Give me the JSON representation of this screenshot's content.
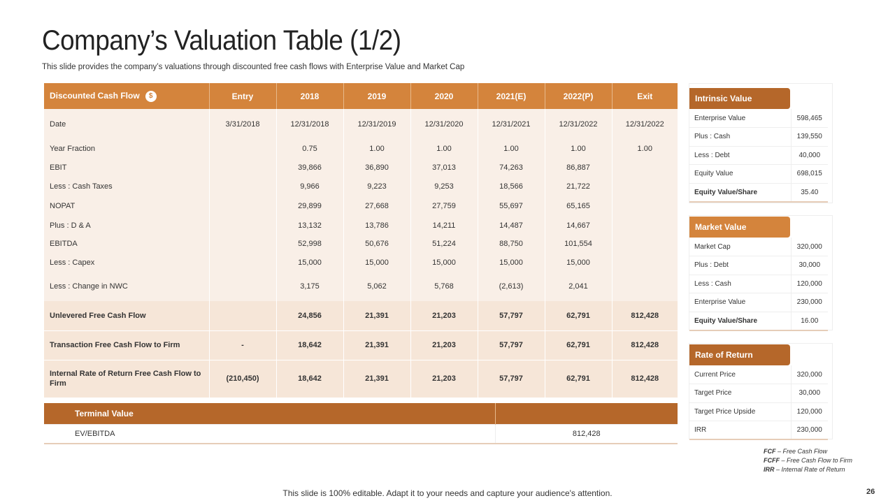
{
  "title": "Company’s Valuation Table (1/2)",
  "subtitle": "This slide provides the company’s valuations through discounted free cash flows with Enterprise Value and Market Cap",
  "dcf": {
    "header": [
      "Discounted Cash Flow",
      "Entry",
      "2018",
      "2019",
      "2020",
      "2021(E)",
      "2022(P)",
      "Exit"
    ],
    "coin_icon": "$",
    "rows": [
      {
        "label": "Date",
        "values": [
          "3/31/2018",
          "12/31/2018",
          "12/31/2019",
          "12/31/2020",
          "12/31/2021",
          "12/31/2022",
          "12/31/2022"
        ]
      },
      {
        "label": "Year Fraction",
        "values": [
          "",
          "0.75",
          "1.00",
          "1.00",
          "1.00",
          "1.00",
          "1.00"
        ]
      },
      {
        "label": "EBIT",
        "values": [
          "",
          "39,866",
          "36,890",
          "37,013",
          "74,263",
          "86,887",
          ""
        ]
      },
      {
        "label": "Less : Cash Taxes",
        "values": [
          "",
          "9,966",
          "9,223",
          "9,253",
          "18,566",
          "21,722",
          ""
        ]
      },
      {
        "label": "NOPAT",
        "values": [
          "",
          "29,899",
          "27,668",
          "27,759",
          "55,697",
          "65,165",
          ""
        ]
      },
      {
        "label": "Plus : D & A",
        "values": [
          "",
          "13,132",
          "13,786",
          "14,211",
          "14,487",
          "14,667",
          ""
        ]
      },
      {
        "label": "EBITDA",
        "values": [
          "",
          "52,998",
          "50,676",
          "51,224",
          "88,750",
          "101,554",
          ""
        ]
      },
      {
        "label": "Less : Capex",
        "values": [
          "",
          "15,000",
          "15,000",
          "15,000",
          "15,000",
          "15,000",
          ""
        ]
      },
      {
        "label": "Less : Change in NWC",
        "values": [
          "",
          "3,175",
          "5,062",
          "5,768",
          "(2,613)",
          "2,041",
          ""
        ]
      }
    ],
    "bold_rows": [
      {
        "label": "Unlevered Free Cash Flow",
        "values": [
          "",
          "24,856",
          "21,391",
          "21,203",
          "57,797",
          "62,791",
          "812,428"
        ]
      },
      {
        "label": "Transaction Free Cash Flow to Firm",
        "values": [
          "-",
          "18,642",
          "21,391",
          "21,203",
          "57,797",
          "62,791",
          "812,428"
        ]
      },
      {
        "label": "Internal Rate of Return Free Cash Flow to Firm",
        "values": [
          "(210,450)",
          "18,642",
          "21,391",
          "21,203",
          "57,797",
          "62,791",
          "812,428"
        ]
      }
    ]
  },
  "terminal": {
    "header": "Terminal Value",
    "label": "EV/EBITDA",
    "value": "812,428"
  },
  "panels": {
    "intrinsic": {
      "title": "Intrinsic Value",
      "color": "#b5672a",
      "rows": [
        {
          "label": "Enterprise Value",
          "value": "598,465"
        },
        {
          "label": "Plus : Cash",
          "value": "139,550"
        },
        {
          "label": "Less : Debt",
          "value": "40,000"
        },
        {
          "label": "Equity Value",
          "value": "698,015"
        },
        {
          "label": "Equity Value/Share",
          "value": "35.40"
        }
      ]
    },
    "market": {
      "title": "Market Value",
      "color": "#d4843c",
      "rows": [
        {
          "label": "Market Cap",
          "value": "320,000"
        },
        {
          "label": "Plus : Debt",
          "value": "30,000"
        },
        {
          "label": "Less : Cash",
          "value": "120,000"
        },
        {
          "label": "Enterprise Value",
          "value": "230,000"
        },
        {
          "label": "Equity Value/Share",
          "value": "16.00"
        }
      ]
    },
    "rate": {
      "title": "Rate of Return",
      "color": "#b5672a",
      "rows": [
        {
          "label": "Current Price",
          "value": "320,000"
        },
        {
          "label": "Target Price",
          "value": "30,000"
        },
        {
          "label": "Target Price Upside",
          "value": "120,000"
        },
        {
          "label": "IRR",
          "value": "230,000"
        }
      ]
    }
  },
  "legend": [
    {
      "abbr": "FCF",
      "text": " – Free Cash Flow"
    },
    {
      "abbr": "FCFF",
      "text": " – Free Cash Flow to Firm"
    },
    {
      "abbr": "IRR",
      "text": " – Internal Rate of Return"
    }
  ],
  "footer": "This slide is 100% editable. Adapt it to your needs and capture your audience's attention.",
  "page_number": "26"
}
